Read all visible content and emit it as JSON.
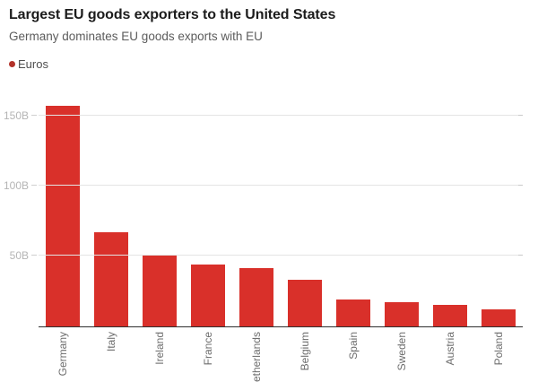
{
  "chart_data": {
    "type": "bar",
    "title": "Largest EU goods exporters to the United States",
    "subtitle": "Germany dominates EU goods exports with EU",
    "legend": "Euros",
    "legend_position": "top-left",
    "categories": [
      "Germany",
      "Italy",
      "Ireland",
      "France",
      "Netherlands",
      "Belgium",
      "Spain",
      "Sweden",
      "Austria",
      "Poland"
    ],
    "values": [
      157,
      67,
      51,
      44,
      41,
      33,
      19,
      17,
      15,
      12
    ],
    "value_suffix": "B",
    "xlabel": "",
    "ylabel": "",
    "ylim": [
      0,
      165
    ],
    "yticks": [
      {
        "value": 50,
        "label": "50B"
      },
      {
        "value": 100,
        "label": "100B"
      },
      {
        "value": 150,
        "label": "150B"
      }
    ],
    "grid": "horizontal",
    "bar_color": "#d9302a",
    "legend_dot_color": "#b23229"
  },
  "colors": {
    "bar": "#d9302a",
    "legend_dot": "#b23229",
    "gridline": "#e4e4e4",
    "axis_baseline": "#2f2f2f",
    "y_tick_text": "#b5b5b5",
    "x_tick_text": "#6d6d6d",
    "title_text": "#1c1c1c",
    "subtitle_text": "#5c5c5c"
  }
}
